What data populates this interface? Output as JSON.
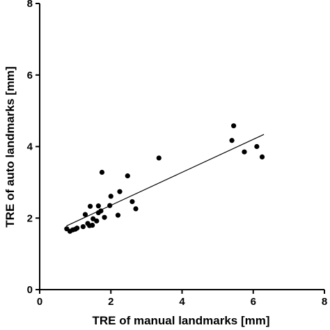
{
  "chart_data": {
    "type": "scatter",
    "title": "",
    "xlabel": "TRE of manual landmarks [mm]",
    "ylabel": "TRE of auto landmarks [mm]",
    "xlim": [
      0,
      8
    ],
    "ylim": [
      0,
      8
    ],
    "xticks": [
      0,
      2,
      4,
      6,
      8
    ],
    "yticks": [
      0,
      2,
      4,
      6,
      8
    ],
    "grid": false,
    "legend": "none",
    "colors": {
      "points": "#000000",
      "line": "#000000",
      "axes": "#000000"
    },
    "series": [
      {
        "type": "scatter",
        "points": [
          [
            0.76,
            1.7
          ],
          [
            0.85,
            1.63
          ],
          [
            0.93,
            1.67
          ],
          [
            1.0,
            1.69
          ],
          [
            1.05,
            1.72
          ],
          [
            1.22,
            1.76
          ],
          [
            1.28,
            2.1
          ],
          [
            1.35,
            1.85
          ],
          [
            1.4,
            1.79
          ],
          [
            1.42,
            2.33
          ],
          [
            1.48,
            1.8
          ],
          [
            1.5,
            1.98
          ],
          [
            1.6,
            1.92
          ],
          [
            1.65,
            2.15
          ],
          [
            1.65,
            2.34
          ],
          [
            1.72,
            2.2
          ],
          [
            1.75,
            3.28
          ],
          [
            1.82,
            2.02
          ],
          [
            1.97,
            2.35
          ],
          [
            2.0,
            2.61
          ],
          [
            2.2,
            2.08
          ],
          [
            2.25,
            2.74
          ],
          [
            2.47,
            3.18
          ],
          [
            2.6,
            2.46
          ],
          [
            2.7,
            2.26
          ],
          [
            3.35,
            3.68
          ],
          [
            5.4,
            4.17
          ],
          [
            5.45,
            4.58
          ],
          [
            5.75,
            3.85
          ],
          [
            6.1,
            4.0
          ],
          [
            6.25,
            3.71
          ]
        ]
      },
      {
        "type": "line",
        "fit": true,
        "points": [
          [
            0.75,
            1.78
          ],
          [
            6.3,
            4.34
          ]
        ]
      }
    ]
  }
}
